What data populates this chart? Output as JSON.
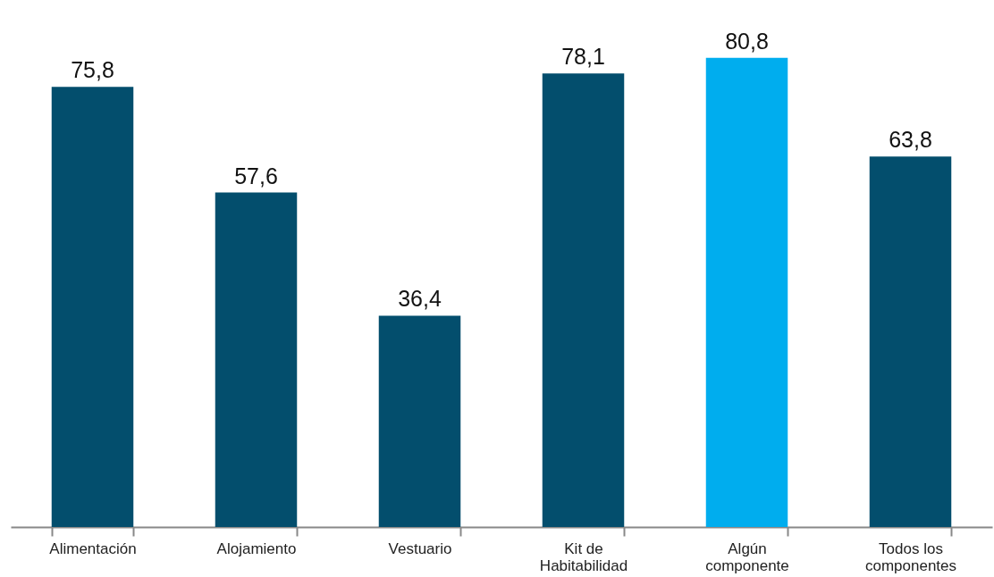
{
  "chart_data": {
    "type": "bar",
    "categories": [
      "Alimentación",
      "Alojamiento",
      "Vestuario",
      "Kit de Habitabilidad",
      "Algún componente",
      "Todos los componentes"
    ],
    "values": [
      75.8,
      57.6,
      36.4,
      78.1,
      80.8,
      63.8
    ],
    "colors": [
      "#034e6d",
      "#034e6d",
      "#034e6d",
      "#034e6d",
      "#00adee",
      "#034e6d"
    ],
    "value_labels": [
      "75,8",
      "57,6",
      "36,4",
      "78,1",
      "80,8",
      "63,8"
    ]
  }
}
